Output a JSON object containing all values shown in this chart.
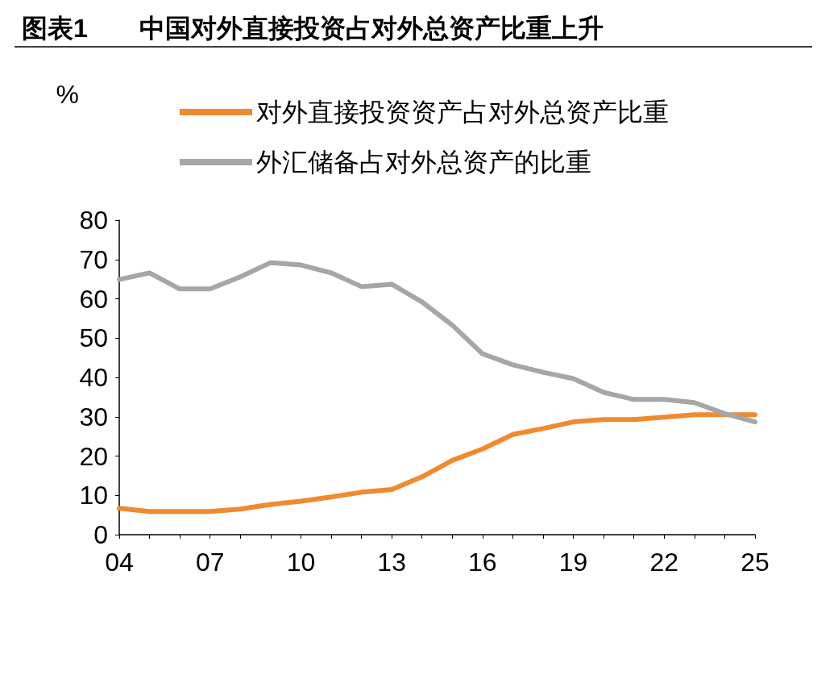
{
  "chart_data": {
    "type": "line",
    "title": "图表1　　中国对外直接投资占对外总资产比重上升",
    "ylabel": "%",
    "categories": [
      "04",
      null,
      null,
      "07",
      null,
      null,
      "10",
      null,
      null,
      "13",
      null,
      null,
      "16",
      null,
      null,
      "19",
      null,
      null,
      "22",
      null,
      null,
      "25"
    ],
    "series": [
      {
        "name": "对外直接投资资产占对外总资产比重",
        "color": "#f08a2f",
        "values": [
          6.7,
          5.9,
          5.9,
          5.9,
          6.5,
          7.7,
          8.5,
          9.6,
          10.8,
          11.5,
          14.7,
          18.9,
          21.8,
          25.5,
          27,
          28.7,
          29.3,
          29.3,
          29.9,
          30.5,
          30.5,
          30.5
        ]
      },
      {
        "name": "外汇储备占对外总资产的比重",
        "color": "#a6a6a6",
        "values": [
          64.9,
          66.6,
          62.5,
          62.5,
          65.6,
          69.2,
          68.6,
          66.6,
          63.1,
          63.7,
          59.2,
          53.3,
          46,
          43.2,
          41.3,
          39.7,
          36.2,
          34.4,
          34.4,
          33.6,
          30.8,
          28.7
        ]
      }
    ],
    "ylim": [
      0,
      80
    ],
    "yticks": [
      0,
      10,
      20,
      30,
      40,
      50,
      60,
      70,
      80
    ],
    "grid": false,
    "legend": "top",
    "marker": "none",
    "line_style": "solid"
  }
}
